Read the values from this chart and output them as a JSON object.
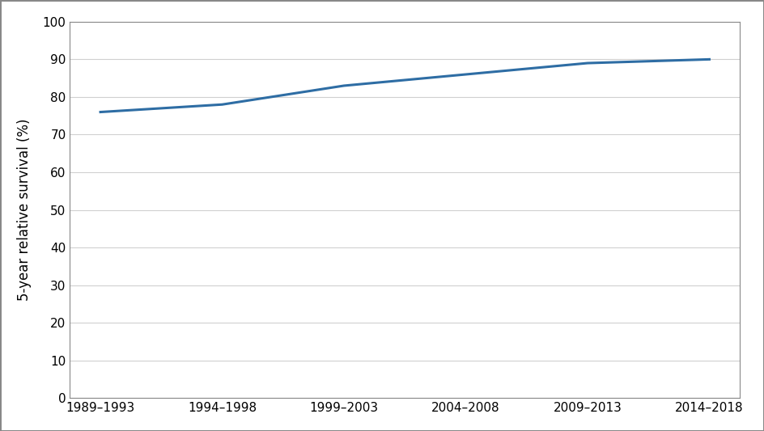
{
  "categories": [
    "1989–1993",
    "1994–1998",
    "1999–2003",
    "2004–2008",
    "2009–2013",
    "2014–2018"
  ],
  "values": [
    76.0,
    78.0,
    83.0,
    86.0,
    89.0,
    90.0
  ],
  "line_color": "#2E6DA4",
  "line_width": 2.2,
  "ylabel": "5-year relative survival (%)",
  "ylim": [
    0,
    100
  ],
  "yticks": [
    0,
    10,
    20,
    30,
    40,
    50,
    60,
    70,
    80,
    90,
    100
  ],
  "grid_color": "#D0D0D0",
  "background_color": "#FFFFFF",
  "border_color": "#AAAAAA",
  "ylabel_fontsize": 12,
  "tick_fontsize": 11
}
